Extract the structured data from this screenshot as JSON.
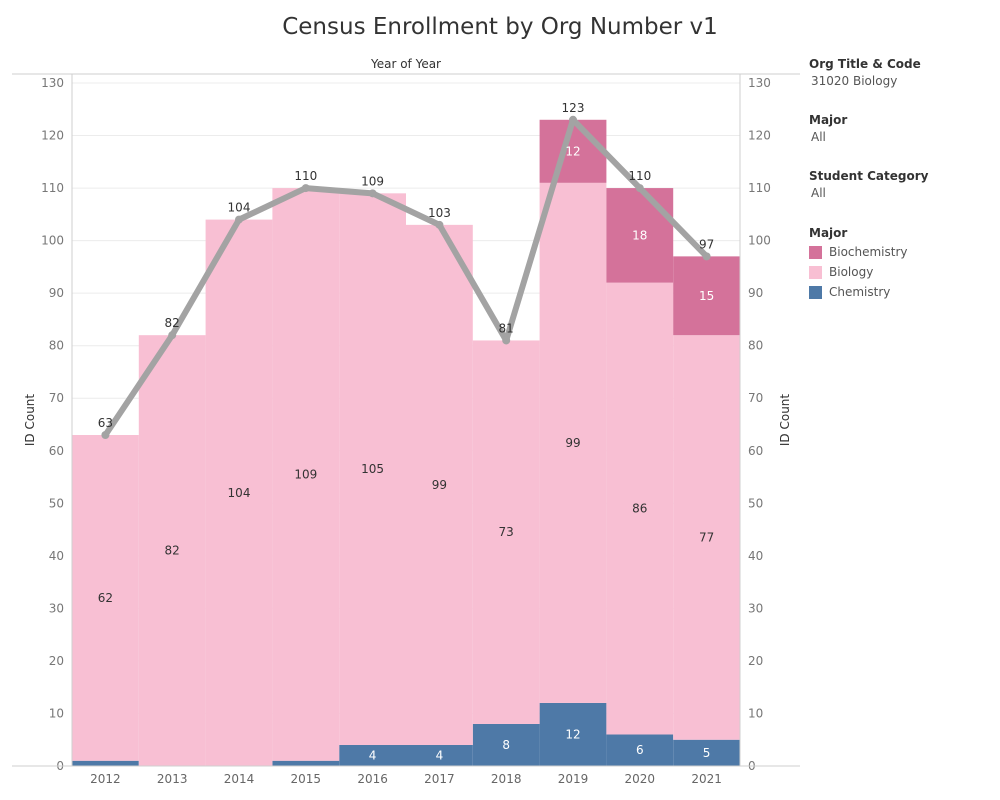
{
  "title": "Census Enrollment by Org Number v1",
  "filters": [
    {
      "label": "Org Title & Code",
      "value": "31020 Biology"
    },
    {
      "label": "Major",
      "value": "All"
    },
    {
      "label": "Student Category",
      "value": "All"
    }
  ],
  "legend": {
    "title": "Major",
    "items": [
      {
        "label": "Biochemistry",
        "color": "#d4729a"
      },
      {
        "label": "Biology",
        "color": "#f8bfd3"
      },
      {
        "label": "Chemistry",
        "color": "#4e79a7"
      }
    ]
  },
  "colors": {
    "line": "#a3a3a3",
    "grid": "#ececec",
    "axis": "#cfcfcf"
  },
  "chart_data": {
    "type": "bar",
    "stacked": true,
    "header": "Year of Year",
    "xlabel": "",
    "ylabel": "ID Count",
    "ylabel_right": "ID Count",
    "ylim": [
      0,
      130
    ],
    "yticks": [
      0,
      10,
      20,
      30,
      40,
      50,
      60,
      70,
      80,
      90,
      100,
      110,
      120,
      130
    ],
    "categories": [
      "2012",
      "2013",
      "2014",
      "2015",
      "2016",
      "2017",
      "2018",
      "2019",
      "2020",
      "2021"
    ],
    "series": [
      {
        "name": "Chemistry",
        "values": [
          1,
          0,
          0,
          1,
          4,
          4,
          8,
          12,
          6,
          5
        ],
        "labels": [
          "",
          "",
          "",
          "",
          "4",
          "4",
          "8",
          "12",
          "6",
          "5"
        ]
      },
      {
        "name": "Biology",
        "values": [
          62,
          82,
          104,
          109,
          105,
          99,
          73,
          99,
          86,
          77
        ],
        "labels": [
          "62",
          "82",
          "104",
          "109",
          "105",
          "99",
          "73",
          "99",
          "86",
          "77"
        ]
      },
      {
        "name": "Biochemistry",
        "values": [
          0,
          0,
          0,
          0,
          0,
          0,
          0,
          12,
          18,
          15
        ],
        "labels": [
          "",
          "",
          "",
          "",
          "",
          "",
          "",
          "12",
          "18",
          "15"
        ]
      }
    ],
    "totals": {
      "type": "line",
      "values": [
        63,
        82,
        104,
        110,
        109,
        103,
        81,
        123,
        110,
        97
      ],
      "labels": [
        "63",
        "82",
        "104",
        "110",
        "109",
        "103",
        "81",
        "123",
        "110",
        "97"
      ]
    }
  }
}
